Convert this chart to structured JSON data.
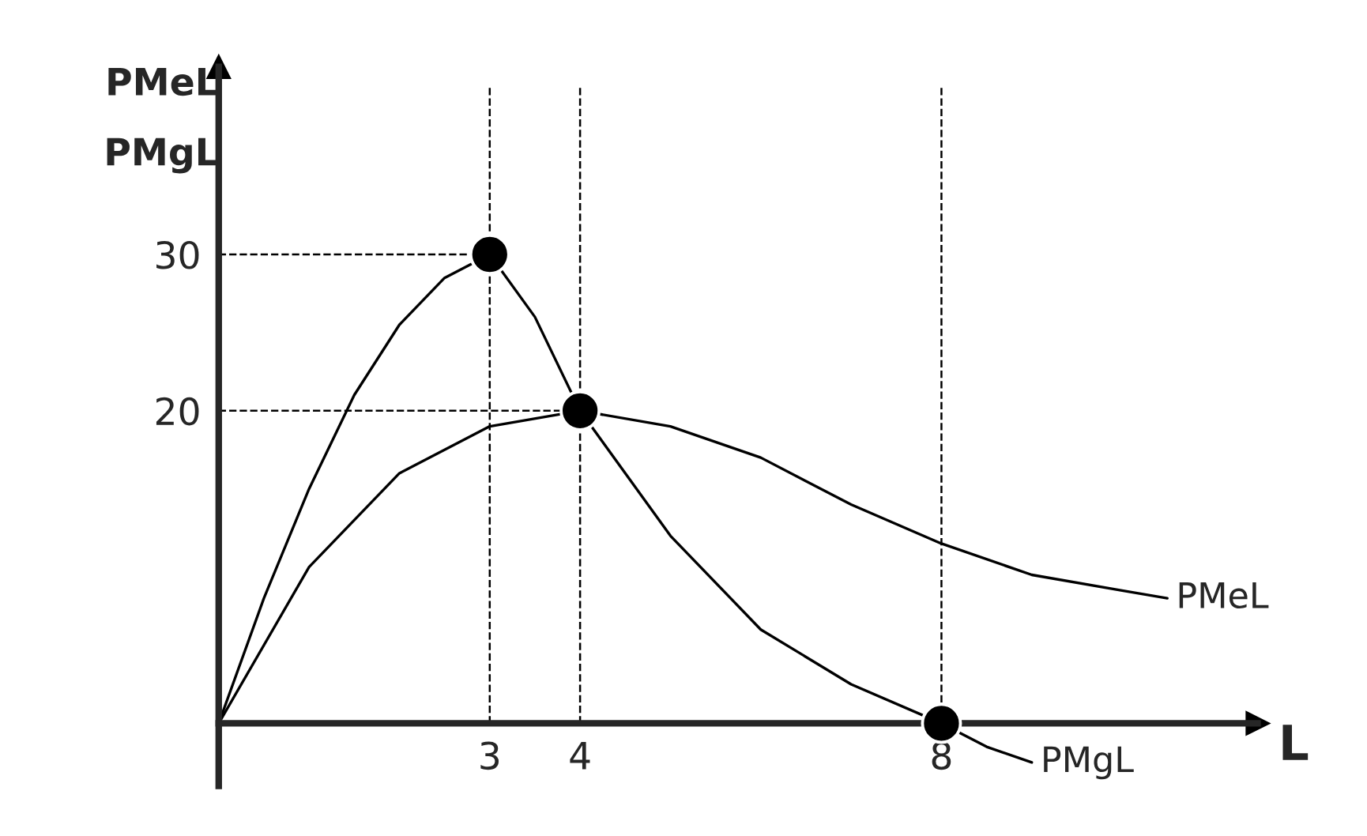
{
  "chart_data": {
    "type": "line",
    "xlabel": "L",
    "ylabel": "PMeL\nPMgL",
    "xlim": [
      0,
      11.5
    ],
    "ylim": [
      -4,
      42
    ],
    "xticks": [
      3,
      4,
      8
    ],
    "yticks": [
      20,
      30
    ],
    "grid": false,
    "legend": false,
    "marker": "none",
    "line_style": "solid",
    "series": [
      {
        "name": "PMeL",
        "color": "#000000",
        "x": [
          0,
          1,
          2,
          3,
          4,
          5,
          6,
          7,
          8,
          9,
          10,
          10.5
        ],
        "values": [
          0,
          10,
          16,
          19,
          20,
          19,
          17,
          14,
          11.5,
          9.5,
          8.5,
          8
        ]
      },
      {
        "name": "PMgL",
        "color": "#000000",
        "x": [
          0,
          0.5,
          1,
          1.5,
          2,
          2.5,
          3,
          3.5,
          4,
          5,
          6,
          7,
          8,
          8.5,
          9
        ],
        "values": [
          0,
          8,
          15,
          21,
          25.5,
          28.5,
          30,
          26,
          20,
          12,
          6,
          2.5,
          0,
          -1.5,
          -2.5
        ]
      },
      {
        "type": "scatter",
        "marker": "circle",
        "color": "#000000",
        "x": [
          3,
          4,
          8
        ],
        "values": [
          30,
          20,
          0
        ]
      }
    ],
    "ref_lines": [
      {
        "axis": "x",
        "value": 3,
        "line_style": "dashed"
      },
      {
        "axis": "x",
        "value": 4,
        "line_style": "dashed"
      },
      {
        "axis": "x",
        "value": 8,
        "line_style": "dashed"
      },
      {
        "axis": "y",
        "value": 30,
        "line_style": "dashed"
      },
      {
        "axis": "y",
        "value": 20,
        "line_style": "dashed"
      }
    ]
  }
}
